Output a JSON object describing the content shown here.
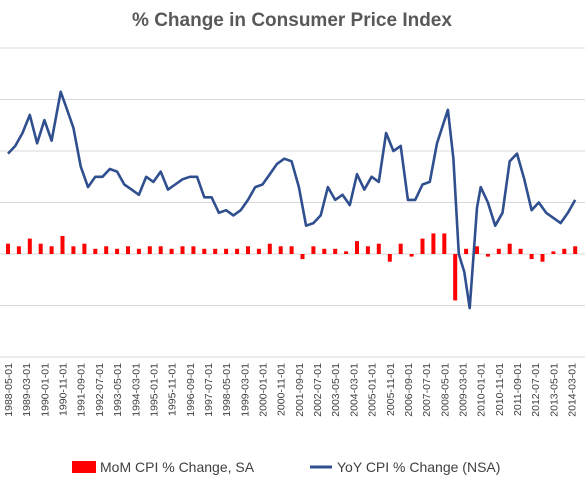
{
  "chart_data": {
    "type": "bar+line",
    "title": "% Change in Consumer Price Index",
    "xlabel": "",
    "ylabel": "",
    "ylim": [
      -4,
      8
    ],
    "grid": true,
    "legend_position": "bottom",
    "x_start": "1988-05",
    "x_end": "2014-06",
    "tick_labels": [
      "1988-05-01",
      "1989-03-01",
      "1990-01-01",
      "1990-11-01",
      "1991-09-01",
      "1992-07-01",
      "1993-05-01",
      "1994-03-01",
      "1995-01-01",
      "1995-11-01",
      "1996-09-01",
      "1997-07-01",
      "1998-05-01",
      "1999-03-01",
      "2000-01-01",
      "2000-11-01",
      "2001-09-01",
      "2002-07-01",
      "2003-05-01",
      "2004-03-01",
      "2005-01-01",
      "2005-11-01",
      "2006-09-01",
      "2007-07-01",
      "2008-05-01",
      "2009-03-01",
      "2010-01-01",
      "2010-11-01",
      "2011-09-01",
      "2012-07-01",
      "2013-05-01",
      "2014-03-01"
    ],
    "series": [
      {
        "name": "MoM CPI % Change, SA",
        "kind": "bar",
        "color": "#ff0000",
        "x": [
          "1988-05",
          "1988-11",
          "1989-05",
          "1989-11",
          "1990-05",
          "1990-11",
          "1991-05",
          "1991-11",
          "1992-05",
          "1992-11",
          "1993-05",
          "1993-11",
          "1994-05",
          "1994-11",
          "1995-05",
          "1995-11",
          "1996-05",
          "1996-11",
          "1997-05",
          "1997-11",
          "1998-05",
          "1998-11",
          "1999-05",
          "1999-11",
          "2000-05",
          "2000-11",
          "2001-05",
          "2001-11",
          "2002-05",
          "2002-11",
          "2003-05",
          "2003-11",
          "2004-05",
          "2004-11",
          "2005-05",
          "2005-11",
          "2006-05",
          "2006-11",
          "2007-05",
          "2007-11",
          "2008-05",
          "2008-11",
          "2009-05",
          "2009-11",
          "2010-05",
          "2010-11",
          "2011-05",
          "2011-11",
          "2012-05",
          "2012-11",
          "2013-05",
          "2013-11",
          "2014-05"
        ],
        "values": [
          0.4,
          0.3,
          0.6,
          0.4,
          0.3,
          0.7,
          0.3,
          0.4,
          0.2,
          0.3,
          0.2,
          0.3,
          0.2,
          0.3,
          0.3,
          0.2,
          0.3,
          0.3,
          0.2,
          0.2,
          0.2,
          0.2,
          0.3,
          0.2,
          0.4,
          0.3,
          0.3,
          -0.2,
          0.3,
          0.2,
          0.2,
          0.1,
          0.5,
          0.3,
          0.4,
          -0.3,
          0.4,
          -0.1,
          0.6,
          0.8,
          0.8,
          -1.8,
          0.2,
          0.3,
          -0.1,
          0.2,
          0.4,
          0.2,
          -0.2,
          -0.3,
          0.1,
          0.2,
          0.3
        ]
      },
      {
        "name": "YoY CPI % Change (NSA)",
        "kind": "line",
        "color": "#2f4f8f",
        "x": [
          "1988-05",
          "1988-09",
          "1989-01",
          "1989-05",
          "1989-09",
          "1990-01",
          "1990-05",
          "1990-10",
          "1991-01",
          "1991-05",
          "1991-09",
          "1992-01",
          "1992-05",
          "1992-09",
          "1993-01",
          "1993-05",
          "1993-09",
          "1994-01",
          "1994-05",
          "1994-09",
          "1995-01",
          "1995-05",
          "1995-09",
          "1996-01",
          "1996-05",
          "1996-09",
          "1997-01",
          "1997-05",
          "1997-09",
          "1998-01",
          "1998-05",
          "1998-09",
          "1999-01",
          "1999-05",
          "1999-09",
          "2000-01",
          "2000-05",
          "2000-09",
          "2001-01",
          "2001-05",
          "2001-09",
          "2002-01",
          "2002-05",
          "2002-09",
          "2003-01",
          "2003-05",
          "2003-09",
          "2004-01",
          "2004-05",
          "2004-09",
          "2005-01",
          "2005-05",
          "2005-09",
          "2006-01",
          "2006-05",
          "2006-09",
          "2007-01",
          "2007-05",
          "2007-09",
          "2008-01",
          "2008-07",
          "2008-10",
          "2009-01",
          "2009-04",
          "2009-07",
          "2009-11",
          "2010-01",
          "2010-05",
          "2010-09",
          "2011-01",
          "2011-05",
          "2011-09",
          "2012-01",
          "2012-05",
          "2012-09",
          "2013-01",
          "2013-05",
          "2013-09",
          "2014-01",
          "2014-05"
        ],
        "values": [
          3.9,
          4.2,
          4.7,
          5.4,
          4.3,
          5.2,
          4.4,
          6.3,
          5.7,
          4.9,
          3.4,
          2.6,
          3.0,
          3.0,
          3.3,
          3.2,
          2.7,
          2.5,
          2.3,
          3.0,
          2.8,
          3.2,
          2.5,
          2.7,
          2.9,
          3.0,
          3.0,
          2.2,
          2.2,
          1.6,
          1.7,
          1.5,
          1.7,
          2.1,
          2.6,
          2.7,
          3.1,
          3.5,
          3.7,
          3.6,
          2.6,
          1.1,
          1.2,
          1.5,
          2.6,
          2.1,
          2.3,
          1.9,
          3.1,
          2.5,
          3.0,
          2.8,
          4.7,
          4.0,
          4.2,
          2.1,
          2.1,
          2.7,
          2.8,
          4.3,
          5.6,
          3.7,
          0.0,
          -0.7,
          -2.1,
          1.8,
          2.6,
          2.0,
          1.1,
          1.6,
          3.6,
          3.9,
          2.9,
          1.7,
          2.0,
          1.6,
          1.4,
          1.2,
          1.6,
          2.1
        ]
      }
    ]
  }
}
